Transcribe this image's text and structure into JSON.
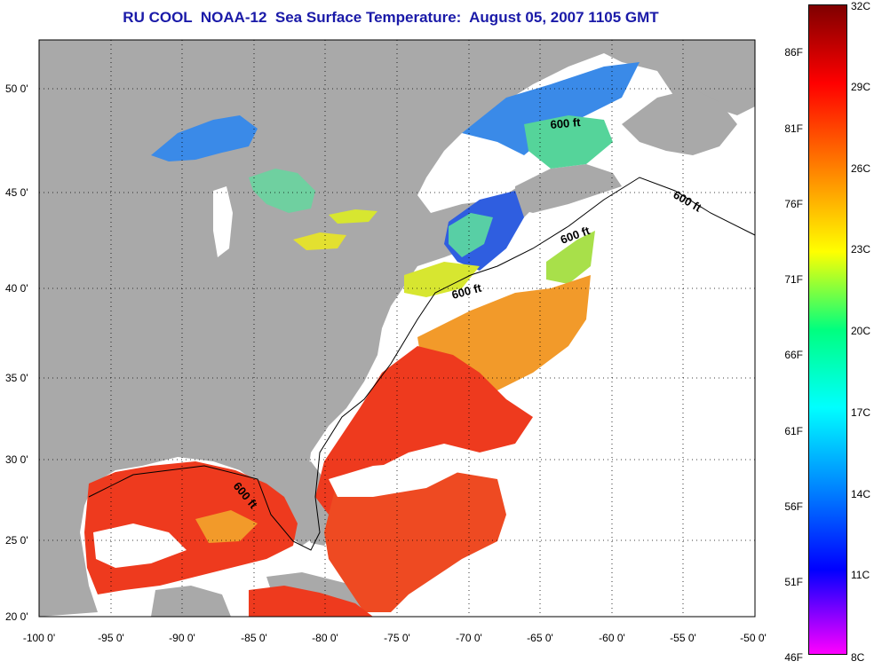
{
  "title": "RU COOL  NOAA-12  Sea Surface Temperature:  August 05, 2007 1105 GMT",
  "lon_ticks": [
    "-100 0'",
    "-95 0'",
    "-90 0'",
    "-85 0'",
    "-80 0'",
    "-75 0'",
    "-70 0'",
    "-65 0'",
    "-60 0'",
    "-55 0'",
    "-50 0'"
  ],
  "lat_ticks": [
    "20 0'",
    "25 0'",
    "30 0'",
    "35 0'",
    "40 0'",
    "45 0'",
    "50 0'"
  ],
  "contour_label": "600 ft",
  "colorbar": {
    "celsius": [
      "32C",
      "29C",
      "26C",
      "23C",
      "20C",
      "17C",
      "14C",
      "11C",
      "8C"
    ],
    "fahrenheit": [
      "86F",
      "81F",
      "76F",
      "71F",
      "66F",
      "61F",
      "56F",
      "51F",
      "46F"
    ],
    "colors": [
      "#7f0000",
      "#ff0000",
      "#ff7f00",
      "#ffff00",
      "#00ff7f",
      "#00ffff",
      "#007fff",
      "#0000ff",
      "#ff00ff"
    ]
  },
  "colors": {
    "land": "#a9a9a9",
    "no_data": "#ffffff",
    "title": "#1a1aa8",
    "warm": "#ee3a1e",
    "warm_orange": "#f29a2a",
    "cool_blue": "#3a8ae8"
  }
}
